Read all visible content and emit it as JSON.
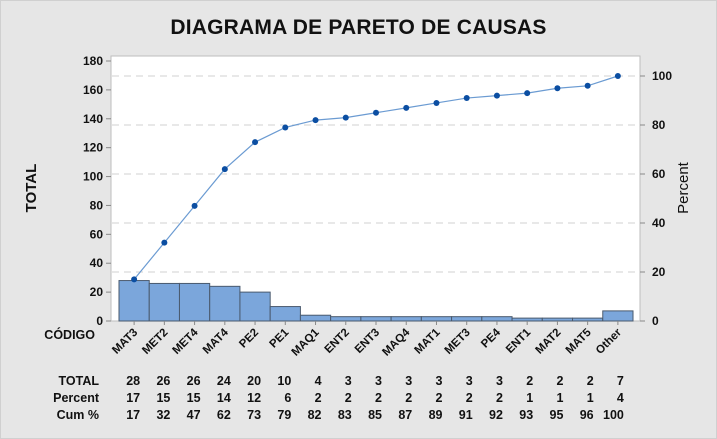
{
  "chart_data": {
    "type": "pareto",
    "title": "DIAGRAMA DE PARETO DE CAUSAS",
    "xlabel": "CÓDIGO",
    "ylabel": "TOTAL",
    "y2label": "Percent",
    "ylim": [
      0,
      180
    ],
    "y2lim": [
      0,
      100
    ],
    "yticks": [
      0,
      20,
      40,
      60,
      80,
      100,
      120,
      140,
      160,
      180
    ],
    "y2ticks": [
      0,
      20,
      40,
      60,
      80,
      100
    ],
    "grid": "dashed horizontal at percent ticks",
    "categories": [
      "MAT3",
      "MET2",
      "MET4",
      "MAT4",
      "PE2",
      "PE1",
      "MAQ1",
      "ENT2",
      "ENT3",
      "MAQ4",
      "MAT1",
      "MET3",
      "PE4",
      "ENT1",
      "MAT2",
      "MAT5",
      "Other"
    ],
    "series": [
      {
        "name": "TOTAL",
        "type": "bar",
        "values": [
          28,
          26,
          26,
          24,
          20,
          10,
          4,
          3,
          3,
          3,
          3,
          3,
          3,
          2,
          2,
          2,
          7
        ]
      },
      {
        "name": "Cum %",
        "type": "line",
        "values": [
          17,
          32,
          47,
          62,
          73,
          79,
          82,
          83,
          85,
          87,
          89,
          91,
          92,
          93,
          95,
          96,
          100
        ]
      }
    ],
    "table": {
      "row_labels": [
        "TOTAL",
        "Percent",
        "Cum %"
      ],
      "TOTAL": [
        28,
        26,
        26,
        24,
        20,
        10,
        4,
        3,
        3,
        3,
        3,
        3,
        3,
        2,
        2,
        2,
        7
      ],
      "Percent": [
        17,
        15,
        15,
        14,
        12,
        6,
        2,
        2,
        2,
        2,
        2,
        2,
        2,
        1,
        1,
        1,
        4
      ],
      "Cum %": [
        17,
        32,
        47,
        62,
        73,
        79,
        82,
        83,
        85,
        87,
        89,
        91,
        92,
        93,
        95,
        96,
        100
      ]
    },
    "colors": {
      "bar": "#7ba6db",
      "bar_edge": "#4a5a6e",
      "line": "#6b9bd2",
      "marker": "#0b4ea2",
      "grid": "#d9d9d9"
    }
  }
}
